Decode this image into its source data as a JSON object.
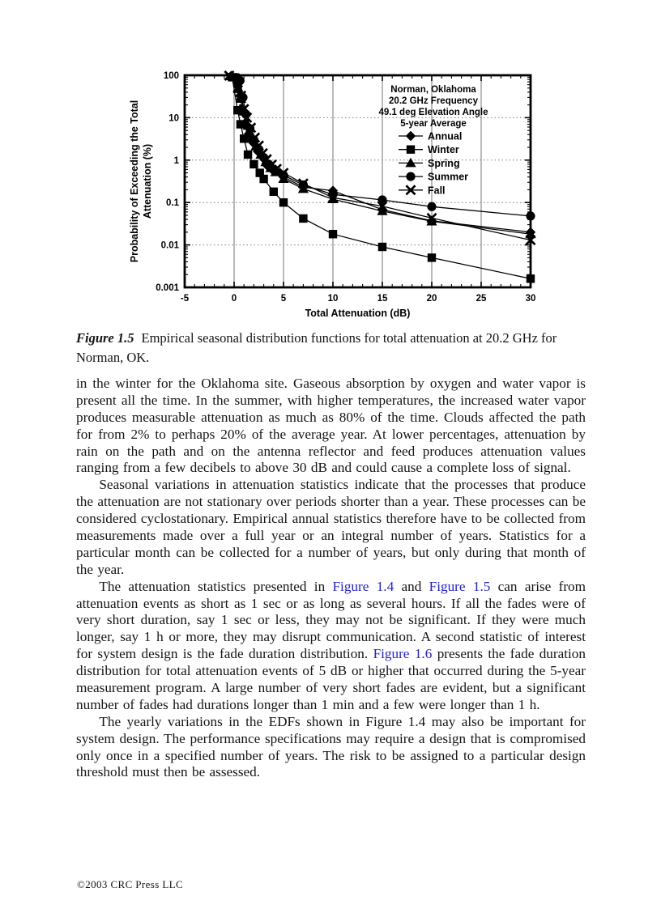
{
  "page": {
    "footer": "©2003 CRC Press LLC"
  },
  "figure": {
    "caption_label": "Figure 1.5",
    "caption_text": "Empirical seasonal distribution functions for total attenuation at 20.2 GHz for Norman, OK."
  },
  "chart_data": {
    "type": "line",
    "title_lines": [
      "Norman, Oklahoma",
      "20.2 GHz  Frequency",
      "49.1 deg  Elevation Angle",
      "5-year Average"
    ],
    "xlabel": "Total Attenuation (dB)",
    "ylabel_lines": [
      "Probability of Exceeding the Total",
      "Attenuation (%)"
    ],
    "xlim": [
      -5,
      30
    ],
    "ylim": [
      0.001,
      100
    ],
    "y_scale": "log",
    "x_ticks": [
      -5,
      0,
      5,
      10,
      15,
      20,
      25,
      30
    ],
    "y_ticks": [
      100,
      10,
      1,
      0.1,
      0.01,
      0.001
    ],
    "y_tick_labels": [
      "100",
      "10",
      "1",
      "0.1",
      "0.01",
      "0.001"
    ],
    "grid": true,
    "legend_position": "top-right",
    "series": [
      {
        "name": "Annual",
        "marker": "diamond",
        "points": [
          [
            -0.3,
            97
          ],
          [
            0.4,
            55
          ],
          [
            0.6,
            33
          ],
          [
            0.9,
            15
          ],
          [
            1.2,
            7
          ],
          [
            1.5,
            4.2
          ],
          [
            1.9,
            2.6
          ],
          [
            2.4,
            1.6
          ],
          [
            2.9,
            1.15
          ],
          [
            3.4,
            0.72
          ],
          [
            4,
            0.55
          ],
          [
            5,
            0.4
          ],
          [
            7,
            0.23
          ],
          [
            10,
            0.19
          ],
          [
            15,
            0.068
          ],
          [
            20,
            0.037
          ],
          [
            30,
            0.02
          ]
        ]
      },
      {
        "name": "Winter",
        "marker": "square",
        "points": [
          [
            -0.2,
            90
          ],
          [
            0.35,
            15
          ],
          [
            0.65,
            7
          ],
          [
            1.0,
            3.2
          ],
          [
            1.4,
            1.35
          ],
          [
            2,
            0.8
          ],
          [
            2.6,
            0.5
          ],
          [
            3,
            0.36
          ],
          [
            4,
            0.18
          ],
          [
            5,
            0.1
          ],
          [
            7,
            0.042
          ],
          [
            10,
            0.018
          ],
          [
            15,
            0.009
          ],
          [
            20,
            0.005
          ],
          [
            30,
            0.0016
          ]
        ]
      },
      {
        "name": "Spring",
        "marker": "triangle",
        "points": [
          [
            -0.3,
            95
          ],
          [
            0.4,
            48
          ],
          [
            0.7,
            28
          ],
          [
            1,
            14
          ],
          [
            1.4,
            6.5
          ],
          [
            1.8,
            3.4
          ],
          [
            2.2,
            2.1
          ],
          [
            2.7,
            1.35
          ],
          [
            3.2,
            0.9
          ],
          [
            3.7,
            0.65
          ],
          [
            4.2,
            0.52
          ],
          [
            5,
            0.36
          ],
          [
            7,
            0.21
          ],
          [
            10,
            0.12
          ],
          [
            15,
            0.063
          ],
          [
            20,
            0.036
          ],
          [
            30,
            0.018
          ]
        ]
      },
      {
        "name": "Summer",
        "marker": "circle",
        "points": [
          [
            0.3,
            88
          ],
          [
            0.6,
            75
          ],
          [
            0.9,
            30
          ],
          [
            1.2,
            12
          ],
          [
            1.6,
            5.5
          ],
          [
            2,
            3.0
          ],
          [
            2.5,
            1.8
          ],
          [
            3,
            1.15
          ],
          [
            3.5,
            0.8
          ],
          [
            4,
            0.62
          ],
          [
            5,
            0.44
          ],
          [
            7,
            0.26
          ],
          [
            10,
            0.155
          ],
          [
            15,
            0.115
          ],
          [
            20,
            0.08
          ],
          [
            30,
            0.048
          ]
        ]
      },
      {
        "name": "Fall",
        "marker": "x",
        "points": [
          [
            -0.5,
            98
          ],
          [
            0.4,
            52
          ],
          [
            0.7,
            33
          ],
          [
            1,
            16
          ],
          [
            1.3,
            10
          ],
          [
            1.7,
            5.8
          ],
          [
            2.1,
            3.4
          ],
          [
            2.5,
            2.2
          ],
          [
            2.9,
            1.45
          ],
          [
            3.3,
            1.05
          ],
          [
            3.8,
            0.78
          ],
          [
            4.3,
            0.62
          ],
          [
            5,
            0.5
          ],
          [
            7,
            0.28
          ],
          [
            10,
            0.13
          ],
          [
            15,
            0.082
          ],
          [
            20,
            0.043
          ],
          [
            30,
            0.013
          ]
        ]
      }
    ]
  },
  "content": {
    "paragraphs": [
      {
        "indent": false,
        "runs": [
          {
            "t": "in the winter for the Oklahoma site. Gaseous absorption by oxygen and water vapor is present all the time. In the summer, with higher temperatures, the increased water vapor produces measurable attenuation as much as 80% of the time. Clouds affected the path for from 2% to perhaps 20% of the average year. At lower percentages, attenuation by rain on the path and on the antenna reflector and feed produces attenuation values ranging from a few decibels to above 30 dB and could cause a complete loss of signal."
          }
        ]
      },
      {
        "indent": true,
        "runs": [
          {
            "t": "Seasonal variations in attenuation statistics indicate that the processes that produce the attenuation are not stationary over periods shorter than a year. These processes can be considered cyclostationary. Empirical annual statistics therefore have to be collected from measurements made over a full year or an integral number of years. Statistics for a particular month can be collected for a number of years, but only during that month of the year."
          }
        ]
      },
      {
        "indent": true,
        "runs": [
          {
            "t": "The attenuation statistics presented in "
          },
          {
            "t": "Figure 1.4",
            "link": true
          },
          {
            "t": " and "
          },
          {
            "t": "Figure 1.5",
            "link": true
          },
          {
            "t": " can arise from attenuation events as short as 1 sec or as long as several hours. If all the fades were of very short duration, say 1 sec or less, they may not be significant. If they were much longer, say 1 h or more, they may disrupt communication. A second statistic of interest for system design is the fade duration distribution. "
          },
          {
            "t": "Figure 1.6",
            "link": true
          },
          {
            "t": " presents the fade duration distribution for total attenuation events of 5 dB or higher that occurred during the 5-year measurement program. A large number of very short fades are evident, but a significant number of fades had durations longer than 1 min and a few were longer than 1 h."
          }
        ]
      },
      {
        "indent": true,
        "runs": [
          {
            "t": "The yearly variations in the EDFs shown in Figure 1.4 may also be important for system design. The performance specifications may require a design that is compromised only once in a specified number of years. The risk to be assigned to a particular design threshold must then be assessed."
          }
        ]
      }
    ]
  },
  "colors": {
    "link_blue": "#2424cc",
    "grid_gray": "#8c8c8c",
    "dotted_gray": "#7d7d7d",
    "ink": "#000000"
  }
}
